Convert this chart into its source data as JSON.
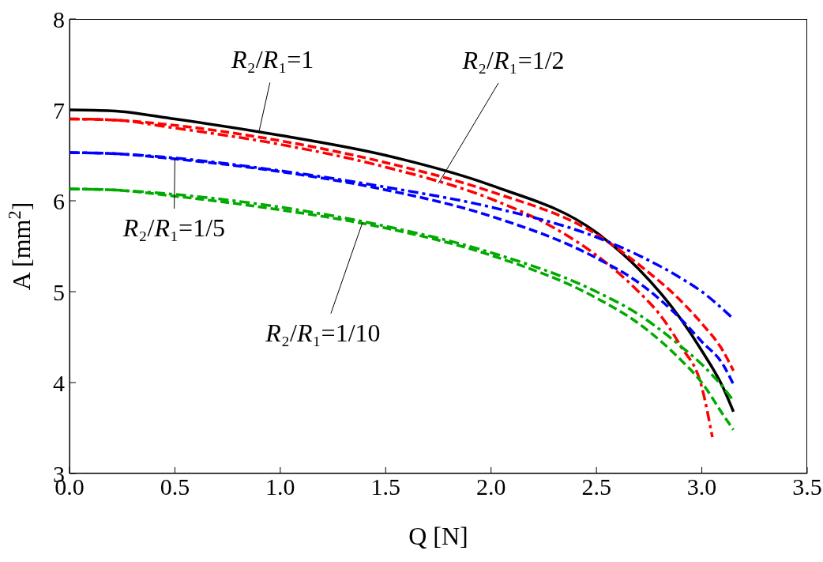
{
  "chart_data": {
    "type": "line",
    "xlabel": "Q [N]",
    "ylabel": "A [mm$^{2}$]",
    "xlim": [
      0,
      3.5
    ],
    "xticks": [
      {
        "value": 0,
        "label": "0.0"
      },
      {
        "value": 0.5,
        "label": "0.5"
      },
      {
        "value": 1,
        "label": "1.0"
      },
      {
        "value": 1.5,
        "label": "1.5"
      },
      {
        "value": 2,
        "label": "2.0"
      },
      {
        "value": 2.5,
        "label": "2.5"
      },
      {
        "value": 3,
        "label": "3.0"
      },
      {
        "value": 3.5,
        "label": "3.5"
      }
    ],
    "ylim": [
      3,
      8
    ],
    "yticks": [
      3,
      4,
      5,
      6,
      7,
      8
    ],
    "marker": "none",
    "series": [
      {
        "color": "#000000",
        "line_style": "solid",
        "x": [
          0,
          0.2,
          0.5,
          1,
          1.5,
          2,
          2.5,
          2.7,
          2.9,
          3,
          3.1,
          3.15
        ],
        "values": [
          7.0,
          6.99,
          6.9,
          6.72,
          6.5,
          6.17,
          5.65,
          5.25,
          4.7,
          4.35,
          3.95,
          3.68
        ]
      },
      {
        "color": "#ff0000",
        "line_style": "dashed",
        "x": [
          0,
          0.2,
          0.5,
          1,
          1.5,
          2,
          2.5,
          2.7,
          2.9,
          3,
          3.1,
          3.15
        ],
        "values": [
          6.9,
          6.89,
          6.83,
          6.66,
          6.42,
          6.1,
          5.63,
          5.3,
          4.9,
          4.65,
          4.35,
          4.13
        ]
      },
      {
        "color": "#ff0000",
        "line_style": "dashdot",
        "x": [
          0,
          0.2,
          0.5,
          1,
          1.5,
          2,
          2.3,
          2.5,
          2.7,
          2.8,
          2.9,
          3,
          3.05
        ],
        "values": [
          6.9,
          6.89,
          6.8,
          6.62,
          6.37,
          6.02,
          5.7,
          5.4,
          5.0,
          4.75,
          4.4,
          3.95,
          3.4
        ]
      },
      {
        "color": "#0000ff",
        "line_style": "dashdot",
        "x": [
          0,
          0.2,
          0.5,
          1,
          1.5,
          2,
          2.5,
          2.7,
          2.9,
          3,
          3.15
        ],
        "values": [
          6.53,
          6.52,
          6.47,
          6.33,
          6.15,
          5.93,
          5.6,
          5.4,
          5.15,
          5.0,
          4.7
        ]
      },
      {
        "color": "#0000ff",
        "line_style": "dashed",
        "x": [
          0,
          0.2,
          0.5,
          1,
          1.5,
          2,
          2.5,
          2.7,
          2.9,
          3,
          3.1,
          3.15
        ],
        "values": [
          6.53,
          6.52,
          6.46,
          6.32,
          6.12,
          5.83,
          5.37,
          5.1,
          4.7,
          4.45,
          4.2,
          3.98
        ]
      },
      {
        "color": "#00aa00",
        "line_style": "dashdot",
        "x": [
          0,
          0.2,
          0.5,
          1,
          1.5,
          2,
          2.5,
          2.7,
          2.9,
          3,
          3.1,
          3.15
        ],
        "values": [
          6.13,
          6.12,
          6.07,
          5.93,
          5.72,
          5.43,
          5.0,
          4.75,
          4.4,
          4.2,
          3.95,
          3.8
        ]
      },
      {
        "color": "#00aa00",
        "line_style": "dashed",
        "x": [
          0,
          0.2,
          0.5,
          1,
          1.5,
          2,
          2.5,
          2.7,
          2.9,
          3,
          3.1,
          3.15
        ],
        "values": [
          6.13,
          6.12,
          6.05,
          5.9,
          5.7,
          5.4,
          4.93,
          4.65,
          4.25,
          4.0,
          3.65,
          3.48
        ]
      }
    ],
    "annotations": [
      {
        "text": "R₂/R₁=1",
        "x": 0.9,
        "y": 6.77
      },
      {
        "text": "R₂/R₁=1/2",
        "x": 1.75,
        "y": 6.19
      },
      {
        "text": "R₂/R₁=1/5",
        "x": 0.5,
        "y": 6.47
      },
      {
        "text": "R₂/R₁=1/10",
        "x": 1.39,
        "y": 5.76
      }
    ]
  }
}
